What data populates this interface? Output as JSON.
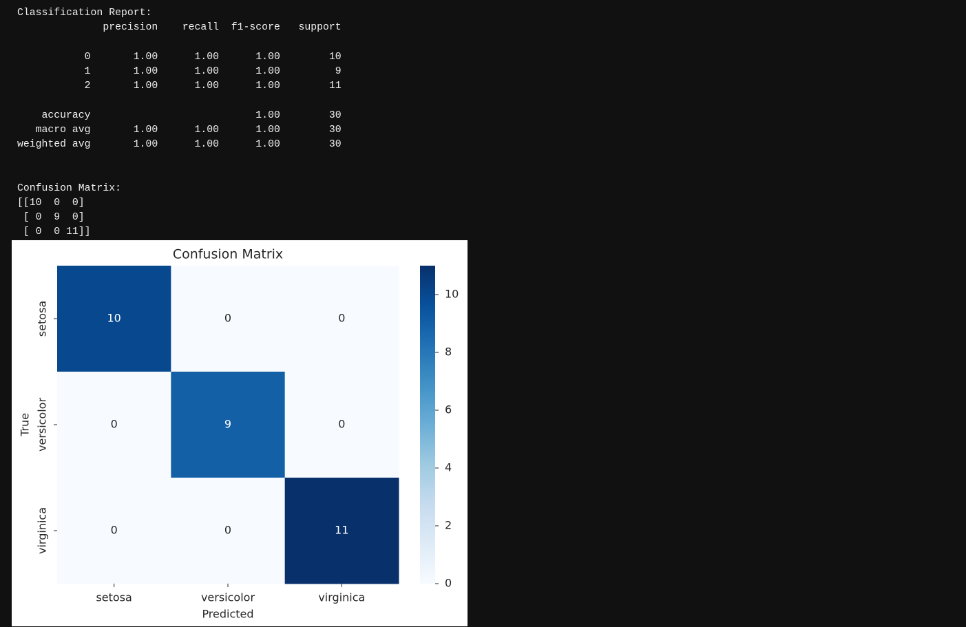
{
  "report": {
    "title": "Classification Report:",
    "header": "              precision    recall  f1-score   support",
    "class_rows": [
      "           0       1.00      1.00      1.00        10",
      "           1       1.00      1.00      1.00         9",
      "           2       1.00      1.00      1.00        11"
    ],
    "summary_rows": [
      "    accuracy                           1.00        30",
      "   macro avg       1.00      1.00      1.00        30",
      "weighted avg       1.00      1.00      1.00        30"
    ]
  },
  "matrix_text": {
    "title": "Confusion Matrix:",
    "lines": [
      "[[10  0  0]",
      " [ 0  9  0]",
      " [ 0  0 11]]"
    ]
  },
  "chart_data": {
    "type": "heatmap",
    "title": "Confusion Matrix",
    "x_label": "Predicted",
    "y_label": "True",
    "x_categories": [
      "setosa",
      "versicolor",
      "virginica"
    ],
    "y_categories": [
      "setosa",
      "versicolor",
      "virginica"
    ],
    "values": [
      [
        10,
        0,
        0
      ],
      [
        0,
        9,
        0
      ],
      [
        0,
        0,
        11
      ]
    ],
    "colormap": "Blues",
    "clim": [
      0,
      11
    ],
    "cticks": [
      0,
      2,
      4,
      6,
      8,
      10
    ]
  }
}
